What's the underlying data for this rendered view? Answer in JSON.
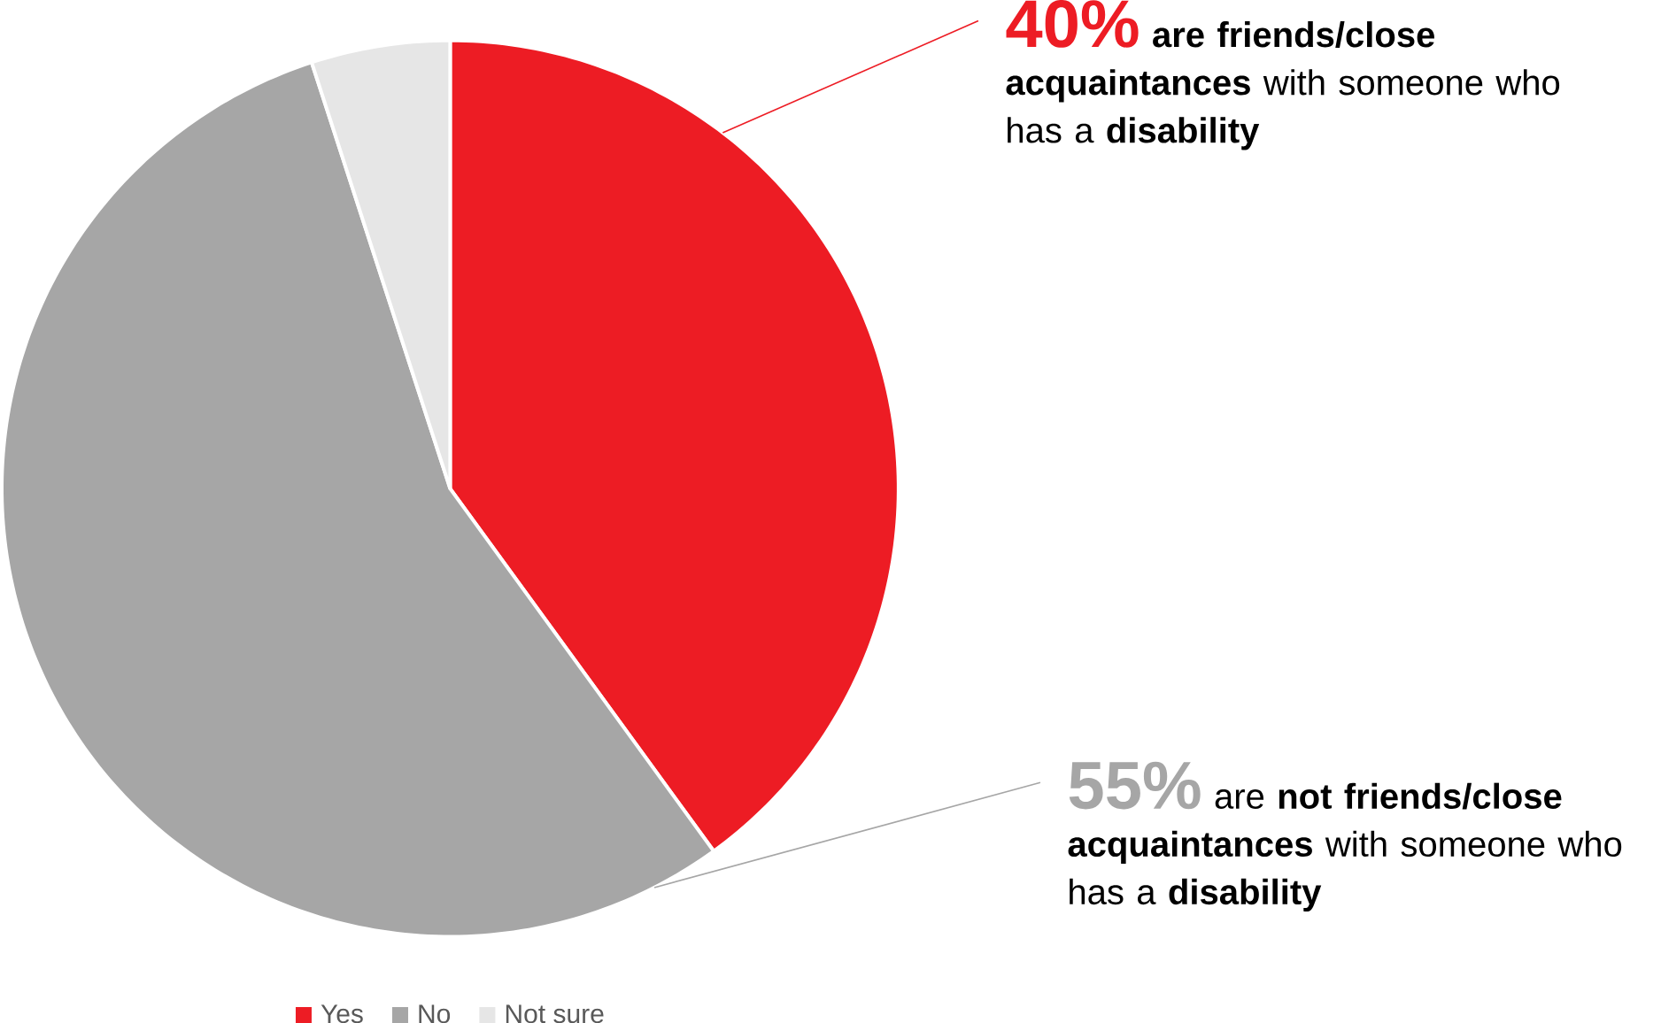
{
  "chart_data": {
    "type": "pie",
    "categories": [
      "Yes",
      "No",
      "Not sure"
    ],
    "values": [
      40,
      55,
      5
    ],
    "colors": [
      "#ed1c24",
      "#a6a6a6",
      "#e6e6e6"
    ],
    "value_labels": [
      "40%",
      "55%",
      null
    ],
    "annotations": [
      "**are friends/close acquaintances** with someone who has a **disability**",
      "are **not friends/close acquaintances** with someone who has a **disability**"
    ],
    "legend": "bottom"
  }
}
